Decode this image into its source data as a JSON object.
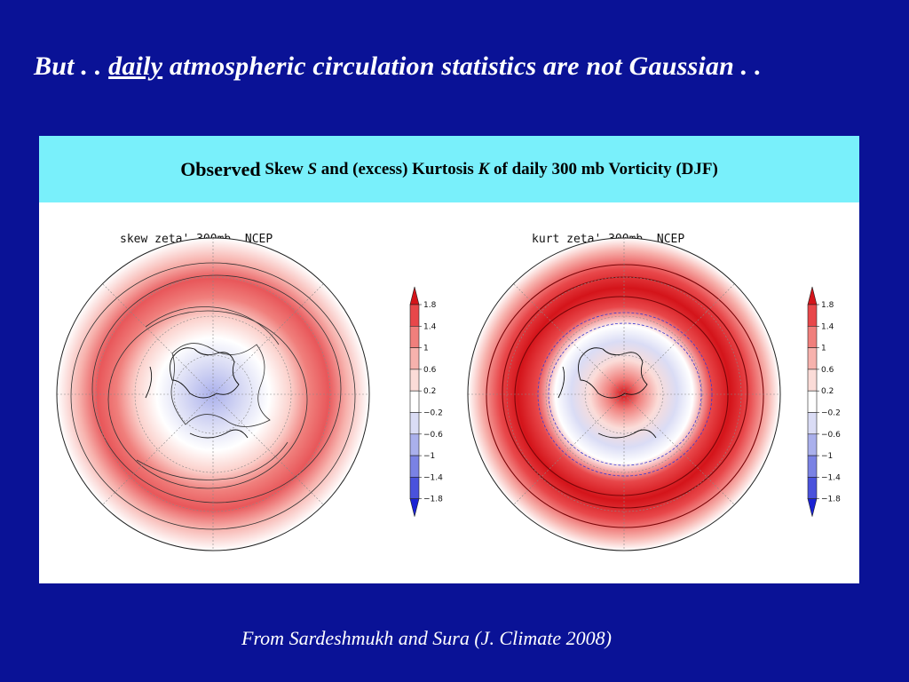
{
  "slide": {
    "title_prefix": "But . . ",
    "title_underlined": "daily",
    "title_suffix": " atmospheric circulation statistics are not Gaussian . ."
  },
  "panel": {
    "header_lead": "Observed",
    "header_skew": "Skew",
    "header_S": "S",
    "header_mid": "and (excess) Kurtosis",
    "header_K": "K",
    "header_tail": "of daily 300 mb Vorticity   (DJF)"
  },
  "maps": [
    {
      "title": "skew zeta' 300mb, NCEP"
    },
    {
      "title": "kurt zeta' 300mb, NCEP"
    }
  ],
  "colorbar": {
    "labels": [
      "1.8",
      "1.4",
      "1",
      "0.6",
      "0.2",
      "−0.2",
      "−0.6",
      "−1",
      "−1.4",
      "−1.8"
    ],
    "colors": [
      "#d4141a",
      "#e8474a",
      "#f07f7c",
      "#f7b2ad",
      "#fbdcd8",
      "#ffffff",
      "#dadcf5",
      "#aab0ec",
      "#7a82e4",
      "#4a52dc",
      "#1a22d4"
    ]
  },
  "citation": "From Sardeshmukh and Sura (J. Climate 2008)"
}
